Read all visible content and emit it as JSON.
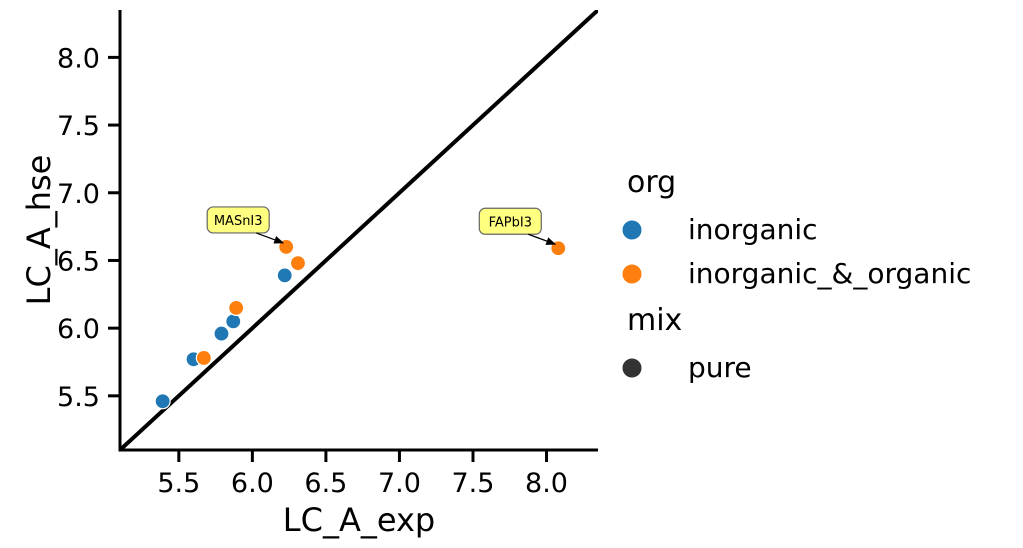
{
  "chart_data": {
    "type": "scatter",
    "title": "",
    "xlabel": "LC_A_exp",
    "ylabel": "LC_A_hse",
    "xlim": [
      5.1,
      8.35
    ],
    "ylim": [
      5.1,
      8.35
    ],
    "xticks": [
      "5.5",
      "6.0",
      "6.5",
      "7.0",
      "7.5",
      "8.0"
    ],
    "yticks": [
      "5.5",
      "6.0",
      "6.5",
      "7.0",
      "7.5",
      "8.0"
    ],
    "grid": false,
    "diagonal_line": true,
    "legend": {
      "placement": "right",
      "hue_title": "org",
      "style_title": "mix",
      "entries": [
        {
          "label": "inorganic",
          "color": "#1f77b4"
        },
        {
          "label": "inorganic_&_organic",
          "color": "#ff7f0e"
        }
      ],
      "style_entries": [
        {
          "label": "pure",
          "color": "#333333"
        }
      ]
    },
    "series": [
      {
        "name": "inorganic",
        "color": "#1f77b4",
        "points": [
          {
            "x": 5.39,
            "y": 5.46
          },
          {
            "x": 5.6,
            "y": 5.77
          },
          {
            "x": 5.79,
            "y": 5.96
          },
          {
            "x": 5.87,
            "y": 6.05
          },
          {
            "x": 6.22,
            "y": 6.39
          }
        ]
      },
      {
        "name": "inorganic_&_organic",
        "color": "#ff7f0e",
        "points": [
          {
            "x": 5.67,
            "y": 5.78
          },
          {
            "x": 5.89,
            "y": 6.15
          },
          {
            "x": 6.23,
            "y": 6.6
          },
          {
            "x": 6.31,
            "y": 6.48
          },
          {
            "x": 8.08,
            "y": 6.59
          }
        ]
      }
    ],
    "annotations": [
      {
        "text": "MASnI3",
        "x": 6.23,
        "y": 6.6
      },
      {
        "text": "FAPbI3",
        "x": 8.08,
        "y": 6.59
      }
    ],
    "annotation_box_color": "#ffff80"
  }
}
